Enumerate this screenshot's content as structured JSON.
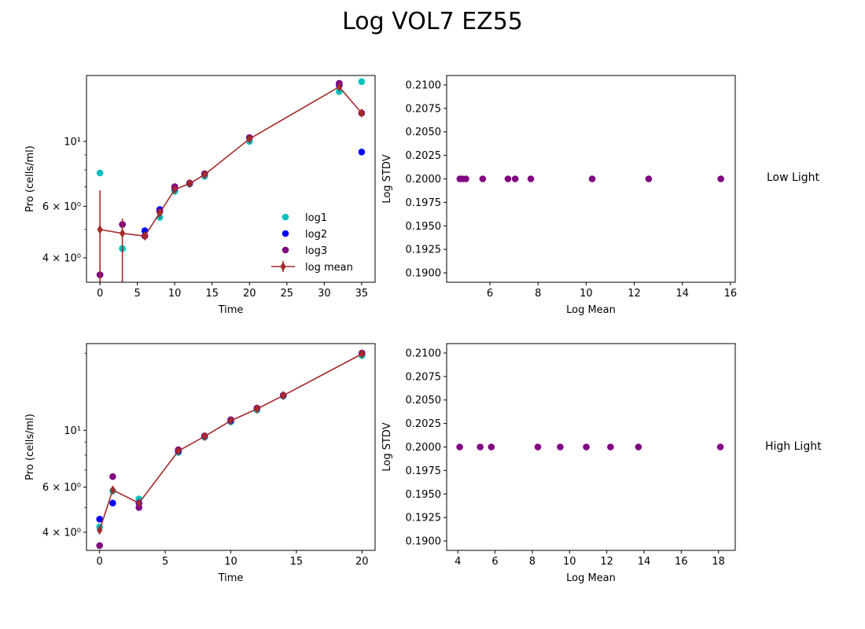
{
  "figure": {
    "title": "Log VOL7 EZ55",
    "row_labels": [
      "Low Light",
      "High Light"
    ]
  },
  "chart_data": [
    {
      "type": "scatter",
      "panel": "top-left",
      "xlabel": "Time",
      "ylabel": "Pro (cells/ml)",
      "y_scale": "log",
      "xlim": [
        -1.8,
        36.8
      ],
      "ylim": [
        3.3,
        16.8
      ],
      "x_ticks": [
        0,
        5,
        10,
        15,
        20,
        25,
        30,
        35
      ],
      "y_ticks": [
        {
          "value": 4,
          "label": "4 × 10⁰"
        },
        {
          "value": 6,
          "label": "6 × 10⁰"
        },
        {
          "value": 10,
          "label": "10¹"
        }
      ],
      "y_minor_ticks": [
        5,
        7,
        8,
        9
      ],
      "legend": {
        "position": "lower-right"
      },
      "series": [
        {
          "name": "log1",
          "color": "#00bfbf",
          "marker": "circle",
          "x": [
            0,
            3,
            6,
            8,
            10,
            12,
            14,
            20,
            32,
            35
          ],
          "y": [
            7.8,
            4.3,
            4.75,
            5.5,
            6.75,
            7.15,
            7.6,
            10.0,
            14.8,
            16.0
          ]
        },
        {
          "name": "log2",
          "color": "#0000ff",
          "marker": "circle",
          "x": [
            0,
            3,
            6,
            8,
            10,
            12,
            14,
            20,
            32,
            35
          ],
          "y": [
            3.5,
            5.2,
            4.95,
            5.85,
            6.9,
            7.2,
            7.75,
            10.3,
            15.5,
            9.2
          ]
        },
        {
          "name": " log3",
          "color": "#800080",
          "marker": "circle",
          "x": [
            0,
            3,
            6,
            8,
            10,
            12,
            14,
            20,
            32,
            35
          ],
          "y": [
            3.5,
            5.2,
            4.75,
            5.75,
            7.0,
            7.2,
            7.75,
            10.3,
            15.8,
            12.5
          ]
        },
        {
          "name": "log mean",
          "color": "#a52a2a",
          "marker": "diamond",
          "line": true,
          "x": [
            0,
            3,
            6,
            8,
            10,
            12,
            14,
            20,
            32,
            35
          ],
          "y": [
            5.0,
            4.85,
            4.75,
            5.7,
            6.85,
            7.18,
            7.7,
            10.2,
            15.36,
            12.5
          ],
          "err_low": [
            1.8,
            2.3,
            0.15,
            0.25,
            0.2,
            0.1,
            0.15,
            0.3,
            0.45,
            0.3
          ],
          "err_high": [
            1.8,
            0.6,
            0.15,
            0.2,
            0.2,
            0.1,
            0.15,
            0.3,
            0.45,
            0.3
          ]
        }
      ]
    },
    {
      "type": "scatter",
      "panel": "top-right",
      "xlabel": "Log Mean",
      "ylabel": "Log STDV",
      "xlim": [
        4.2,
        16.2
      ],
      "ylim": [
        0.189,
        0.211
      ],
      "x_ticks": [
        6,
        8,
        10,
        12,
        14,
        16
      ],
      "y_ticks": [
        0.19,
        0.1925,
        0.195,
        0.1975,
        0.2,
        0.2025,
        0.205,
        0.2075,
        0.21
      ],
      "series": [
        {
          "color": "#800080",
          "marker": "circle",
          "x": [
            4.75,
            4.85,
            5.0,
            5.7,
            6.75,
            7.05,
            7.7,
            10.25,
            12.6,
            15.6
          ],
          "y": [
            0.2,
            0.2,
            0.2,
            0.2,
            0.2,
            0.2,
            0.2,
            0.2,
            0.2,
            0.2
          ]
        }
      ]
    },
    {
      "type": "scatter",
      "panel": "bottom-left",
      "xlabel": "Time",
      "ylabel": "Pro (cells/ml)",
      "y_scale": "log",
      "xlim": [
        -1.0,
        21.0
      ],
      "ylim": [
        3.4,
        21.8
      ],
      "x_ticks": [
        0,
        5,
        10,
        15,
        20
      ],
      "y_ticks": [
        {
          "value": 4,
          "label": "4 × 10⁰"
        },
        {
          "value": 6,
          "label": "6 × 10⁰"
        },
        {
          "value": 10,
          "label": "10¹"
        }
      ],
      "y_minor_ticks": [
        5,
        7,
        8,
        9,
        20
      ],
      "series": [
        {
          "name": "log1",
          "color": "#00bfbf",
          "marker": "circle",
          "x": [
            0,
            1,
            3,
            6,
            8,
            10,
            12,
            14,
            20
          ],
          "y": [
            4.2,
            5.8,
            5.4,
            8.2,
            9.4,
            10.8,
            12.0,
            13.6,
            19.6
          ]
        },
        {
          "name": "log2",
          "color": "#0000ff",
          "marker": "circle",
          "x": [
            0,
            1,
            3,
            6,
            8,
            10,
            12,
            14,
            20
          ],
          "y": [
            4.5,
            5.2,
            5.2,
            8.3,
            9.5,
            10.9,
            12.2,
            13.7,
            20.0
          ]
        },
        {
          "name": " log3",
          "color": "#800080",
          "marker": "circle",
          "x": [
            0,
            1,
            3,
            6,
            8,
            10,
            12,
            14,
            20
          ],
          "y": [
            3.55,
            6.6,
            5.0,
            8.4,
            9.5,
            11.0,
            12.2,
            13.7,
            20.0
          ]
        },
        {
          "name": "log mean",
          "color": "#a52a2a",
          "marker": "diamond",
          "line": true,
          "x": [
            0,
            1,
            3,
            6,
            8,
            10,
            12,
            14,
            20
          ],
          "y": [
            4.08,
            5.85,
            5.2,
            8.3,
            9.47,
            10.9,
            12.13,
            13.67,
            19.87
          ]
        }
      ]
    },
    {
      "type": "scatter",
      "panel": "bottom-right",
      "xlabel": "Log Mean",
      "ylabel": "Log STDV",
      "xlim": [
        3.4,
        18.9
      ],
      "ylim": [
        0.189,
        0.211
      ],
      "x_ticks": [
        4,
        6,
        8,
        10,
        12,
        14,
        16,
        18
      ],
      "y_ticks": [
        0.19,
        0.1925,
        0.195,
        0.1975,
        0.2,
        0.2025,
        0.205,
        0.2075,
        0.21
      ],
      "series": [
        {
          "color": "#800080",
          "marker": "circle",
          "x": [
            4.1,
            5.2,
            5.8,
            8.3,
            9.5,
            10.9,
            12.2,
            13.7,
            18.1
          ],
          "y": [
            0.2,
            0.2,
            0.2,
            0.2,
            0.2,
            0.2,
            0.2,
            0.2,
            0.2
          ]
        }
      ]
    }
  ]
}
